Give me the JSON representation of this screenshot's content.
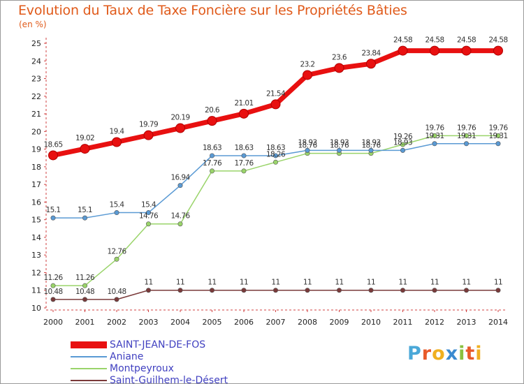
{
  "title": "Evolution du Taux de Taxe Foncière sur les Propriétés Bâties",
  "unit_label": "(en %)",
  "chart_data": {
    "type": "line",
    "title": "Evolution du Taux de Taxe Foncière sur les Propriétés Bâties",
    "ylabel": "(en %)",
    "xlabel": "",
    "x": [
      "2000",
      "2001",
      "2002",
      "2003",
      "2004",
      "2005",
      "2006",
      "2007",
      "2008",
      "2009",
      "2010",
      "2011",
      "2012",
      "2013",
      "2014"
    ],
    "ylim": [
      10,
      25
    ],
    "yticks": [
      10,
      11,
      12,
      13,
      14,
      15,
      16,
      17,
      18,
      19,
      20,
      21,
      22,
      23,
      24,
      25
    ],
    "grid": false,
    "legend_position": "bottom-left",
    "series": [
      {
        "name": "SAINT-JEAN-DE-FOS",
        "color": "#e81010",
        "values": [
          18.65,
          19.02,
          19.4,
          19.79,
          20.19,
          20.6,
          21.01,
          21.54,
          23.2,
          23.6,
          23.84,
          24.58,
          24.58,
          24.58,
          24.58
        ],
        "labels": [
          "18.65",
          "19.02",
          "19.4",
          "19.79",
          "20.19",
          "20.6",
          "21.01",
          "21.54",
          "23.2",
          "23.6",
          "23.84",
          "24.58",
          "24.58",
          "24.58",
          "24.58"
        ]
      },
      {
        "name": "Aniane",
        "color": "#5a9ad4",
        "values": [
          15.1,
          15.1,
          15.4,
          15.4,
          16.94,
          18.63,
          18.63,
          18.63,
          18.93,
          18.93,
          18.93,
          18.93,
          19.31,
          19.31,
          19.31
        ],
        "labels": [
          "15.1",
          "15.1",
          "15.4",
          "15.4",
          "16.94",
          "18.63",
          "18.63",
          "18.63",
          "18.93",
          "18.93",
          "18.93",
          "18.93",
          "19.31",
          "19.31",
          "19.31"
        ]
      },
      {
        "name": "Montpeyroux",
        "color": "#9ad46a",
        "values": [
          11.26,
          11.26,
          12.76,
          14.76,
          14.76,
          17.76,
          17.76,
          18.26,
          18.76,
          18.76,
          18.76,
          19.26,
          19.76,
          19.76,
          19.76
        ],
        "labels": [
          "11.26",
          "11.26",
          "12.76",
          "14.76",
          "14.76",
          "17.76",
          "17.76",
          "18.26",
          "18.76",
          "18.76",
          "18.76",
          "19.26",
          "19.76",
          "19.76",
          "19.76"
        ]
      },
      {
        "name": "Saint-Guilhem-le-Désert",
        "color": "#7a3a3a",
        "values": [
          10.48,
          10.48,
          10.48,
          11,
          11,
          11,
          11,
          11,
          11,
          11,
          11,
          11,
          11,
          11,
          11
        ],
        "labels": [
          "10.48",
          "10.48",
          "10.48",
          "11",
          "11",
          "11",
          "11",
          "11",
          "11",
          "11",
          "11",
          "11",
          "11",
          "11",
          "11"
        ]
      }
    ]
  },
  "logo": {
    "letters": [
      "P",
      "r",
      "o",
      "x",
      "i",
      "t",
      "i"
    ],
    "colors": [
      "#4aa8d8",
      "#e85a2a",
      "#f0b020",
      "#3a8ad0",
      "#8ac040",
      "#e85a2a",
      "#f0b020"
    ]
  }
}
